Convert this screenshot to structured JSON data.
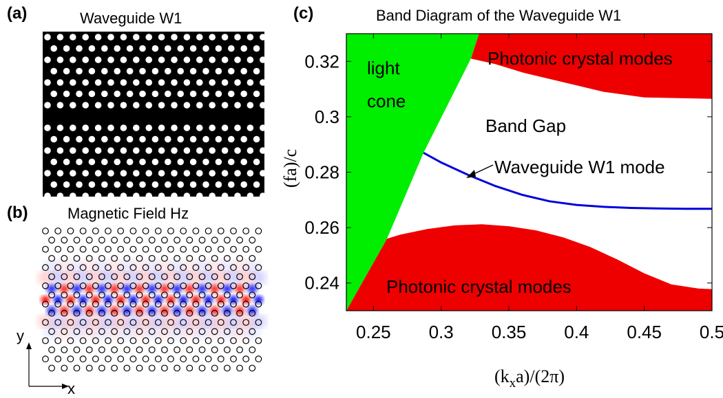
{
  "figure": {
    "panel_a": {
      "label": "(a)",
      "title": "Waveguide W1"
    },
    "panel_b": {
      "label": "(b)",
      "title": "Magnetic Field Hz",
      "axis_y": "y",
      "axis_x": "x"
    },
    "panel_c": {
      "label": "(c)",
      "title": "Band Diagram of the Waveguide W1"
    }
  },
  "chart_data": {
    "type": "area",
    "title": "Band Diagram of the Waveguide W1",
    "xlabel_prefix": "(k",
    "xlabel_sub": "x",
    "xlabel_suffix": "a)/(2π)",
    "ylabel": "(fa)/c",
    "xlim": [
      0.23,
      0.5
    ],
    "ylim": [
      0.23,
      0.33
    ],
    "xticks": [
      "0.25",
      "0.3",
      "0.35",
      "0.4",
      "0.45",
      "0.5"
    ],
    "xtick_values": [
      0.25,
      0.3,
      0.35,
      0.4,
      0.45,
      0.5
    ],
    "yticks": [
      "0.24",
      "0.26",
      "0.28",
      "0.3",
      "0.32"
    ],
    "ytick_values": [
      0.24,
      0.26,
      0.28,
      0.3,
      0.32
    ],
    "colors": {
      "light_cone": "#00ee00",
      "crystal_modes": "#ee0000",
      "waveguide_mode": "#0000dd"
    },
    "regions": {
      "light_cone": {
        "label_line1": "light",
        "label_line2": "cone",
        "points": [
          [
            0.23,
            0.23
          ],
          [
            0.23,
            0.33
          ],
          [
            0.328,
            0.33
          ],
          [
            0.322,
            0.321
          ],
          [
            0.287,
            0.287
          ],
          [
            0.26,
            0.256
          ],
          [
            0.23,
            0.23
          ]
        ]
      },
      "upper_modes": {
        "label": "Photonic crystal modes",
        "points": [
          [
            0.328,
            0.33
          ],
          [
            0.5,
            0.33
          ],
          [
            0.5,
            0.3065
          ],
          [
            0.45,
            0.307
          ],
          [
            0.42,
            0.309
          ],
          [
            0.39,
            0.3125
          ],
          [
            0.36,
            0.316
          ],
          [
            0.34,
            0.319
          ],
          [
            0.322,
            0.321
          ]
        ]
      },
      "lower_modes": {
        "label": "Photonic crystal modes",
        "points": [
          [
            0.23,
            0.23
          ],
          [
            0.26,
            0.256
          ],
          [
            0.27,
            0.2575
          ],
          [
            0.29,
            0.2595
          ],
          [
            0.31,
            0.2608
          ],
          [
            0.33,
            0.2612
          ],
          [
            0.35,
            0.2605
          ],
          [
            0.37,
            0.259
          ],
          [
            0.39,
            0.2565
          ],
          [
            0.41,
            0.253
          ],
          [
            0.43,
            0.2485
          ],
          [
            0.45,
            0.2435
          ],
          [
            0.47,
            0.2395
          ],
          [
            0.49,
            0.238
          ],
          [
            0.5,
            0.2378
          ],
          [
            0.5,
            0.23
          ]
        ]
      },
      "band_gap": {
        "label": "Band Gap"
      }
    },
    "waveguide_mode": {
      "label": "Waveguide W1 mode",
      "x": [
        0.287,
        0.3,
        0.32,
        0.34,
        0.36,
        0.38,
        0.4,
        0.42,
        0.44,
        0.46,
        0.48,
        0.5
      ],
      "y": [
        0.287,
        0.2835,
        0.279,
        0.275,
        0.2718,
        0.2695,
        0.2682,
        0.2675,
        0.2671,
        0.2669,
        0.2668,
        0.2668
      ]
    }
  }
}
